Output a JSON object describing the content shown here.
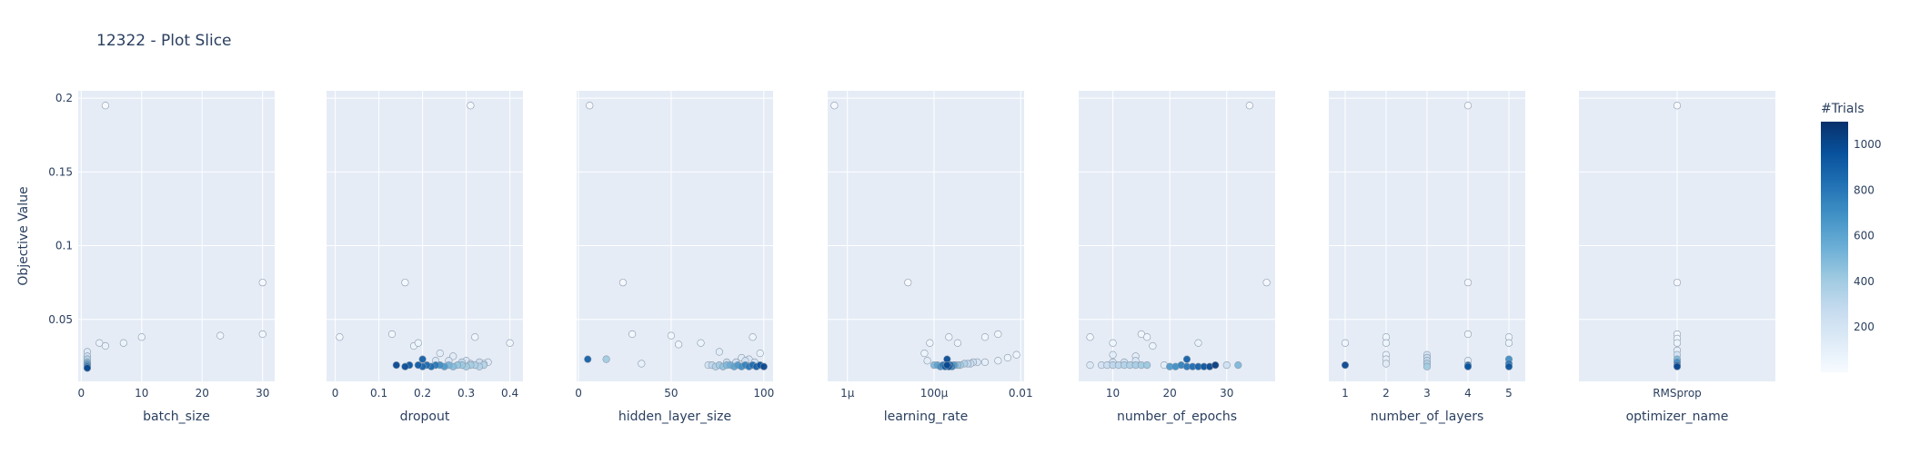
{
  "chart_data": {
    "type": "scatter",
    "title": "12322 - Plot Slice",
    "ylabel": "Objective Value",
    "ylim": [
      0.008,
      0.205
    ],
    "yticks": [
      0.05,
      0.1,
      0.15,
      0.2
    ],
    "ytick_labels": [
      "0.05",
      "0.1",
      "0.15",
      "0.2"
    ],
    "grid": true,
    "colorbar": {
      "title": "#Trials",
      "range": [
        1,
        1100
      ],
      "ticks": [
        200,
        400,
        600,
        800,
        1000
      ],
      "tick_labels": [
        "200",
        "400",
        "600",
        "800",
        "1000"
      ],
      "colorscale": [
        "#f7fbff",
        "#deebf7",
        "#c6dbef",
        "#9ecae1",
        "#6baed6",
        "#4292c6",
        "#2171b5",
        "#08519c",
        "#08306b"
      ]
    },
    "panels": [
      {
        "xlabel": "batch_size",
        "scale": "linear",
        "xlim": [
          -0.5,
          32
        ],
        "xticks": [
          0,
          10,
          20,
          30
        ],
        "xtick_labels": [
          "0",
          "10",
          "20",
          "30"
        ],
        "points": [
          [
            4,
            0.195,
            12
          ],
          [
            30,
            0.075,
            20
          ],
          [
            30,
            0.04,
            30
          ],
          [
            23,
            0.039,
            40
          ],
          [
            10,
            0.038,
            55
          ],
          [
            7,
            0.034,
            65
          ],
          [
            3,
            0.034,
            70
          ],
          [
            4,
            0.032,
            80
          ],
          [
            1,
            0.028,
            150
          ],
          [
            1,
            0.025,
            250
          ],
          [
            1,
            0.023,
            350
          ],
          [
            1,
            0.021,
            450
          ],
          [
            1,
            0.02,
            600
          ],
          [
            1,
            0.019,
            700
          ],
          [
            1,
            0.018,
            850
          ],
          [
            1,
            0.017,
            1000
          ]
        ]
      },
      {
        "xlabel": "dropout",
        "scale": "linear",
        "xlim": [
          -0.02,
          0.43
        ],
        "xticks": [
          0,
          0.1,
          0.2,
          0.3,
          0.4
        ],
        "xtick_labels": [
          "0",
          "0.1",
          "0.2",
          "0.3",
          "0.4"
        ],
        "points": [
          [
            0.31,
            0.195,
            10
          ],
          [
            0.16,
            0.075,
            18
          ],
          [
            0.01,
            0.038,
            25
          ],
          [
            0.13,
            0.04,
            30
          ],
          [
            0.4,
            0.034,
            35
          ],
          [
            0.32,
            0.038,
            45
          ],
          [
            0.18,
            0.032,
            55
          ],
          [
            0.19,
            0.034,
            60
          ],
          [
            0.24,
            0.027,
            110
          ],
          [
            0.27,
            0.025,
            130
          ],
          [
            0.23,
            0.022,
            160
          ],
          [
            0.2,
            0.023,
            900
          ],
          [
            0.14,
            0.019,
            1000
          ],
          [
            0.16,
            0.018,
            980
          ],
          [
            0.17,
            0.019,
            950
          ],
          [
            0.19,
            0.019,
            920
          ],
          [
            0.2,
            0.018,
            880
          ],
          [
            0.21,
            0.019,
            860
          ],
          [
            0.22,
            0.018,
            850
          ],
          [
            0.23,
            0.019,
            800
          ],
          [
            0.24,
            0.019,
            700
          ],
          [
            0.25,
            0.018,
            650
          ],
          [
            0.26,
            0.019,
            520
          ],
          [
            0.27,
            0.018,
            480
          ],
          [
            0.28,
            0.019,
            440
          ],
          [
            0.29,
            0.019,
            420
          ],
          [
            0.3,
            0.018,
            400
          ],
          [
            0.31,
            0.019,
            380
          ],
          [
            0.32,
            0.019,
            360
          ],
          [
            0.33,
            0.018,
            340
          ],
          [
            0.34,
            0.019,
            330
          ],
          [
            0.29,
            0.021,
            300
          ],
          [
            0.31,
            0.02,
            280
          ],
          [
            0.33,
            0.021,
            250
          ],
          [
            0.34,
            0.02,
            200
          ],
          [
            0.26,
            0.022,
            180
          ],
          [
            0.3,
            0.022,
            170
          ],
          [
            0.35,
            0.021,
            140
          ]
        ]
      },
      {
        "xlabel": "hidden_layer_size",
        "scale": "linear",
        "xlim": [
          -1,
          105
        ],
        "xticks": [
          0,
          50,
          100
        ],
        "xtick_labels": [
          "0",
          "50",
          "100"
        ],
        "points": [
          [
            6,
            0.195,
            8
          ],
          [
            24,
            0.075,
            15
          ],
          [
            29,
            0.04,
            25
          ],
          [
            50,
            0.039,
            35
          ],
          [
            54,
            0.033,
            45
          ],
          [
            94,
            0.038,
            55
          ],
          [
            98,
            0.027,
            70
          ],
          [
            34,
            0.02,
            90
          ],
          [
            15,
            0.023,
            400
          ],
          [
            5,
            0.023,
            900
          ],
          [
            66,
            0.034,
            65
          ],
          [
            76,
            0.028,
            120
          ],
          [
            70,
            0.019,
            200
          ],
          [
            72,
            0.019,
            300
          ],
          [
            74,
            0.018,
            350
          ],
          [
            76,
            0.019,
            400
          ],
          [
            78,
            0.018,
            450
          ],
          [
            80,
            0.019,
            500
          ],
          [
            82,
            0.019,
            550
          ],
          [
            84,
            0.018,
            600
          ],
          [
            86,
            0.019,
            650
          ],
          [
            88,
            0.018,
            700
          ],
          [
            90,
            0.019,
            750
          ],
          [
            92,
            0.018,
            800
          ],
          [
            94,
            0.019,
            850
          ],
          [
            96,
            0.018,
            900
          ],
          [
            98,
            0.019,
            950
          ],
          [
            100,
            0.018,
            1000
          ],
          [
            80,
            0.021,
            260
          ],
          [
            85,
            0.021,
            240
          ],
          [
            90,
            0.022,
            220
          ],
          [
            95,
            0.021,
            210
          ],
          [
            88,
            0.024,
            140
          ],
          [
            92,
            0.023,
            160
          ]
        ]
      },
      {
        "xlabel": "learning_rate",
        "scale": "log",
        "xlim": [
          3.5e-07,
          0.012
        ],
        "xticks": [
          1e-06,
          0.0001,
          0.01
        ],
        "xtick_labels": [
          "1μ",
          "100μ",
          "0.01"
        ],
        "points": [
          [
            5e-07,
            0.195,
            6
          ],
          [
            2.5e-05,
            0.075,
            14
          ],
          [
            8e-05,
            0.034,
            40
          ],
          [
            6e-05,
            0.027,
            60
          ],
          [
            0.00022,
            0.038,
            45
          ],
          [
            0.00035,
            0.034,
            50
          ],
          [
            0.0015,
            0.038,
            35
          ],
          [
            0.003,
            0.04,
            30
          ],
          [
            0.008,
            0.026,
            40
          ],
          [
            0.005,
            0.024,
            60
          ],
          [
            0.003,
            0.022,
            80
          ],
          [
            0.0015,
            0.021,
            100
          ],
          [
            7e-05,
            0.022,
            120
          ],
          [
            0.0001,
            0.019,
            500
          ],
          [
            0.00012,
            0.019,
            600
          ],
          [
            0.00014,
            0.018,
            700
          ],
          [
            0.00016,
            0.019,
            800
          ],
          [
            0.00018,
            0.018,
            900
          ],
          [
            0.0002,
            0.019,
            1000
          ],
          [
            0.00022,
            0.018,
            950
          ],
          [
            0.00024,
            0.019,
            850
          ],
          [
            0.00026,
            0.018,
            750
          ],
          [
            0.00028,
            0.019,
            650
          ],
          [
            0.0003,
            0.019,
            550
          ],
          [
            0.00035,
            0.019,
            450
          ],
          [
            0.0004,
            0.019,
            400
          ],
          [
            0.0005,
            0.02,
            350
          ],
          [
            0.0006,
            0.02,
            300
          ],
          [
            0.0007,
            0.02,
            260
          ],
          [
            0.0008,
            0.021,
            220
          ],
          [
            0.001,
            0.021,
            180
          ],
          [
            0.0002,
            0.023,
            980
          ]
        ]
      },
      {
        "xlabel": "number_of_epochs",
        "scale": "linear",
        "xlim": [
          4,
          38.5
        ],
        "xticks": [
          10,
          20,
          30
        ],
        "xtick_labels": [
          "10",
          "20",
          "30"
        ],
        "points": [
          [
            34,
            0.195,
            10
          ],
          [
            37,
            0.075,
            16
          ],
          [
            6,
            0.038,
            25
          ],
          [
            15,
            0.04,
            35
          ],
          [
            16,
            0.038,
            40
          ],
          [
            10,
            0.034,
            50
          ],
          [
            25,
            0.034,
            70
          ],
          [
            17,
            0.032,
            60
          ],
          [
            10,
            0.026,
            120
          ],
          [
            14,
            0.025,
            110
          ],
          [
            6,
            0.019,
            150
          ],
          [
            8,
            0.019,
            200
          ],
          [
            9,
            0.019,
            250
          ],
          [
            10,
            0.019,
            300
          ],
          [
            11,
            0.019,
            320
          ],
          [
            12,
            0.019,
            340
          ],
          [
            13,
            0.019,
            360
          ],
          [
            14,
            0.019,
            380
          ],
          [
            15,
            0.019,
            400
          ],
          [
            16,
            0.019,
            420
          ],
          [
            10,
            0.021,
            200
          ],
          [
            12,
            0.021,
            220
          ],
          [
            14,
            0.022,
            180
          ],
          [
            19,
            0.019,
            120
          ],
          [
            20,
            0.018,
            650
          ],
          [
            21,
            0.018,
            700
          ],
          [
            22,
            0.019,
            750
          ],
          [
            23,
            0.018,
            800
          ],
          [
            24,
            0.018,
            850
          ],
          [
            25,
            0.018,
            900
          ],
          [
            26,
            0.018,
            950
          ],
          [
            27,
            0.018,
            1000
          ],
          [
            28,
            0.019,
            1050
          ],
          [
            23,
            0.023,
            900
          ],
          [
            32,
            0.019,
            500
          ],
          [
            30,
            0.019,
            220
          ]
        ]
      },
      {
        "xlabel": "number_of_layers",
        "scale": "linear",
        "xlim": [
          0.6,
          5.4
        ],
        "xticks": [
          1,
          2,
          3,
          4,
          5
        ],
        "xtick_labels": [
          "1",
          "2",
          "3",
          "4",
          "5"
        ],
        "points": [
          [
            4,
            0.195,
            8
          ],
          [
            4,
            0.075,
            18
          ],
          [
            4,
            0.04,
            30
          ],
          [
            1,
            0.034,
            40
          ],
          [
            2,
            0.038,
            45
          ],
          [
            2,
            0.034,
            55
          ],
          [
            2,
            0.026,
            75
          ],
          [
            2,
            0.023,
            100
          ],
          [
            2,
            0.02,
            130
          ],
          [
            3,
            0.026,
            200
          ],
          [
            3,
            0.024,
            250
          ],
          [
            3,
            0.022,
            300
          ],
          [
            3,
            0.02,
            350
          ],
          [
            3,
            0.018,
            400
          ],
          [
            1,
            0.019,
            1000
          ],
          [
            4,
            0.022,
            100
          ],
          [
            4,
            0.019,
            900
          ],
          [
            4,
            0.018,
            950
          ],
          [
            5,
            0.038,
            40
          ],
          [
            5,
            0.034,
            60
          ],
          [
            5,
            0.023,
            700
          ],
          [
            5,
            0.02,
            800
          ],
          [
            5,
            0.018,
            950
          ]
        ]
      },
      {
        "xlabel": "optimizer_name",
        "scale": "category",
        "categories": [
          "RMSprop"
        ],
        "xticks": [
          0
        ],
        "xtick_labels": [
          "RMSprop"
        ],
        "points": [
          [
            0,
            0.195,
            8
          ],
          [
            0,
            0.075,
            18
          ],
          [
            0,
            0.04,
            30
          ],
          [
            0,
            0.037,
            40
          ],
          [
            0,
            0.034,
            60
          ],
          [
            0,
            0.029,
            100
          ],
          [
            0,
            0.026,
            200
          ],
          [
            0,
            0.023,
            500
          ],
          [
            0,
            0.021,
            700
          ],
          [
            0,
            0.019,
            900
          ],
          [
            0,
            0.018,
            1000
          ]
        ]
      }
    ]
  }
}
